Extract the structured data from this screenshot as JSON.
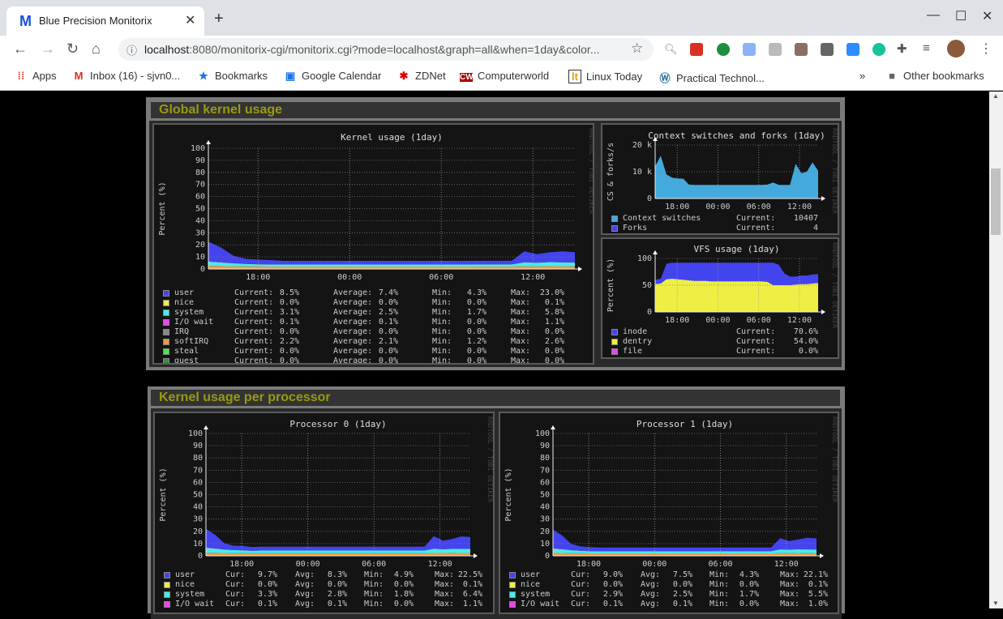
{
  "browser": {
    "tab_title": "Blue Precision Monitorix",
    "tab_favicon": "M",
    "url_host": "localhost",
    "url_rest": ":8080/monitorix-cgi/monitorix.cgi?mode=localhost&graph=all&when=1day&color...",
    "bookmarks": [
      {
        "icon": "apps-grid-icon",
        "label": "Apps"
      },
      {
        "icon": "gmail-icon",
        "label": "Inbox (16) - sjvn0..."
      },
      {
        "icon": "star-icon",
        "label": "Bookmarks"
      },
      {
        "icon": "calendar-icon",
        "label": "Google Calendar"
      },
      {
        "icon": "zdnet-icon",
        "label": "ZDNet"
      },
      {
        "icon": "computerworld-icon",
        "label": "Computerworld"
      },
      {
        "icon": "linux-today-icon",
        "label": "Linux Today"
      },
      {
        "icon": "wordpress-icon",
        "label": "Practical Technol..."
      }
    ],
    "overflow": "»",
    "other_bookmarks": "Other bookmarks"
  },
  "sections": [
    {
      "title": "Global kernel usage"
    },
    {
      "title": "Kernel usage per processor"
    }
  ],
  "watermark": "RRDTOOL / TOBI OETIKER",
  "colors": {
    "user": "#4444ee",
    "nice": "#eeee44",
    "system": "#44eeee",
    "iowait": "#ee44ee",
    "irq": "#888888",
    "softirq": "#ee9944",
    "steal": "#44ee44",
    "guest": "#448844",
    "cs": "#44aadd",
    "forks": "#4444ee",
    "inode": "#4444ee",
    "dentry": "#eeee44",
    "file": "#ee44ee",
    "section_title": "#9a9a10"
  },
  "chart_data": [
    {
      "type": "area",
      "title": "Kernel usage  (1day)",
      "ylabel": "Percent (%)",
      "ylim": [
        0,
        100
      ],
      "yticks": [
        "0",
        "10",
        "20",
        "30",
        "40",
        "50",
        "60",
        "70",
        "80",
        "90",
        "100"
      ],
      "xticks": [
        "18:00",
        "00:00",
        "06:00",
        "12:00"
      ],
      "grid": true,
      "series": [
        {
          "name": "softIRQ",
          "values": [
            2.6,
            2.4,
            2.2,
            2.2,
            2.1,
            2,
            2,
            2,
            2,
            2,
            2,
            2,
            2,
            2,
            2,
            2,
            2,
            2,
            2,
            2,
            2,
            2,
            2,
            2,
            2,
            2.3,
            2.2,
            2.4,
            2.3,
            2.2
          ]
        },
        {
          "name": "system",
          "values": [
            3.5,
            3,
            2.5,
            2,
            1.8,
            1.7,
            1.7,
            1.7,
            1.7,
            1.7,
            1.7,
            1.7,
            1.7,
            1.7,
            1.7,
            1.7,
            1.7,
            1.7,
            1.7,
            1.7,
            1.7,
            1.8,
            1.8,
            1.8,
            1.8,
            3.2,
            3,
            3.3,
            3.2,
            3.1
          ]
        },
        {
          "name": "I/O wait",
          "values": [
            0.5,
            0.3,
            0.2,
            0.1,
            0.1,
            0.1,
            0,
            0,
            0,
            0,
            0,
            0,
            0,
            0,
            0,
            0,
            0,
            0,
            0,
            0,
            0,
            0,
            0,
            0,
            0,
            0.2,
            0.1,
            0.1,
            0.1,
            0.1
          ]
        },
        {
          "name": "user",
          "values": [
            16,
            12,
            6,
            4,
            3.8,
            3.5,
            3,
            3,
            3,
            3,
            3,
            3,
            3,
            3,
            3,
            3,
            3,
            3,
            3,
            3,
            3,
            3,
            3,
            3,
            3,
            9,
            7,
            8,
            9,
            8.5
          ]
        }
      ],
      "legend": [
        {
          "key": "user",
          "cur": "8.5%",
          "avg": "7.4%",
          "min": "4.3%",
          "max": "23.0%"
        },
        {
          "key": "nice",
          "cur": "0.0%",
          "avg": "0.0%",
          "min": "0.0%",
          "max": "0.1%"
        },
        {
          "key": "system",
          "cur": "3.1%",
          "avg": "2.5%",
          "min": "1.7%",
          "max": "5.8%"
        },
        {
          "key": "I/O wait",
          "cur": "0.1%",
          "avg": "0.1%",
          "min": "0.0%",
          "max": "1.1%"
        },
        {
          "key": "IRQ",
          "cur": "0.0%",
          "avg": "0.0%",
          "min": "0.0%",
          "max": "0.0%"
        },
        {
          "key": "softIRQ",
          "cur": "2.2%",
          "avg": "2.1%",
          "min": "1.2%",
          "max": "2.6%"
        },
        {
          "key": "steal",
          "cur": "0.0%",
          "avg": "0.0%",
          "min": "0.0%",
          "max": "0.0%"
        },
        {
          "key": "guest",
          "cur": "0.0%",
          "avg": "0.0%",
          "min": "0.0%",
          "max": "0.0%"
        }
      ],
      "labels": {
        "cur": "Current:",
        "avg": "Average:",
        "min": "Min:",
        "max": "Max:"
      }
    },
    {
      "type": "area",
      "title": "Context switches and forks  (1day)",
      "ylabel": "CS & forks/s",
      "ylim": [
        0,
        20000
      ],
      "yticks": [
        "0",
        "10 k",
        "20 k"
      ],
      "xticks": [
        "18:00",
        "00:00",
        "06:00",
        "12:00"
      ],
      "grid": true,
      "series": [
        {
          "name": "Context switches",
          "values": [
            12000,
            16000,
            9000,
            7800,
            7500,
            7400,
            5200,
            5100,
            5100,
            5100,
            5100,
            5100,
            5100,
            5100,
            5100,
            5100,
            5100,
            5100,
            5100,
            5100,
            5200,
            6000,
            5100,
            5100,
            5100,
            13000,
            9500,
            10000,
            13500,
            10400
          ]
        },
        {
          "name": "Forks",
          "values": [
            5,
            6,
            4,
            4,
            4,
            4,
            4,
            4,
            4,
            4,
            4,
            4,
            4,
            4,
            4,
            4,
            4,
            4,
            4,
            4,
            4,
            4,
            4,
            4,
            4,
            5,
            4,
            4,
            5,
            4
          ]
        }
      ],
      "legend": [
        {
          "key": "Context switches",
          "cur": "10407"
        },
        {
          "key": "Forks",
          "cur": "4"
        }
      ],
      "labels": {
        "cur": "Current:"
      }
    },
    {
      "type": "area",
      "title": "VFS usage  (1day)",
      "ylabel": "Percent (%)",
      "ylim": [
        0,
        100
      ],
      "yticks": [
        "0",
        "50",
        "100"
      ],
      "xticks": [
        "18:00",
        "00:00",
        "06:00",
        "12:00"
      ],
      "grid": true,
      "series": [
        {
          "name": "inode",
          "values": [
            60,
            62,
            90,
            92,
            92,
            92,
            92,
            92,
            92,
            92,
            92,
            92,
            92,
            92,
            92,
            92,
            92,
            92,
            92,
            92,
            92,
            92,
            88,
            72,
            66,
            66,
            68,
            68,
            70,
            70.6
          ]
        },
        {
          "name": "dentry",
          "values": [
            52,
            53,
            61,
            62,
            61,
            60,
            59,
            58,
            58,
            58,
            57,
            57,
            57,
            57,
            57,
            57,
            57,
            57,
            57,
            57,
            56,
            50,
            50,
            50,
            50,
            51,
            52,
            52,
            53,
            54
          ]
        },
        {
          "name": "file",
          "values": [
            0,
            0,
            0,
            0,
            0,
            0,
            0,
            0,
            0,
            0,
            0,
            0,
            0,
            0,
            0,
            0,
            0,
            0,
            0,
            0,
            0,
            0,
            0,
            0,
            0,
            0,
            0,
            0,
            0,
            0
          ]
        }
      ],
      "legend": [
        {
          "key": "inode",
          "cur": "70.6%"
        },
        {
          "key": "dentry",
          "cur": "54.0%"
        },
        {
          "key": "file",
          "cur": "0.0%"
        }
      ],
      "labels": {
        "cur": "Current:"
      }
    },
    {
      "type": "area",
      "title": "Processor 0  (1day)",
      "ylabel": "Percent (%)",
      "ylim": [
        0,
        100
      ],
      "yticks": [
        "0",
        "10",
        "20",
        "30",
        "40",
        "50",
        "60",
        "70",
        "80",
        "90",
        "100"
      ],
      "xticks": [
        "18:00",
        "00:00",
        "06:00",
        "12:00"
      ],
      "grid": true,
      "series": [
        {
          "name": "softIRQ",
          "values": [
            2.5,
            2.4,
            2.3,
            2.2,
            2.2,
            2.1,
            2.1,
            2.1,
            2.1,
            2.1,
            2.1,
            2.1,
            2.1,
            2.1,
            2.1,
            2.1,
            2.1,
            2.1,
            2.1,
            2.1,
            2.1,
            2.1,
            2.1,
            2.1,
            2.2,
            2.3,
            2.3,
            2.4,
            2.3,
            2.3
          ]
        },
        {
          "name": "system",
          "values": [
            4,
            3.5,
            2.8,
            2.5,
            2.3,
            2,
            2.2,
            2.2,
            2.2,
            2.2,
            2.2,
            2.2,
            2.2,
            2.2,
            2.2,
            2.2,
            2.2,
            2.2,
            2.2,
            2.2,
            2.2,
            2.2,
            2.2,
            2.2,
            2.2,
            3.5,
            3,
            3.3,
            3.4,
            3.3
          ]
        },
        {
          "name": "I/O wait",
          "values": [
            0.5,
            0.3,
            0.2,
            0.1,
            0.1,
            0.1,
            0,
            0,
            0,
            0,
            0,
            0,
            0,
            0,
            0,
            0,
            0,
            0,
            0,
            0,
            0,
            0,
            0,
            0,
            0,
            0.2,
            0.1,
            0.1,
            0.1,
            0.1
          ]
        },
        {
          "name": "user",
          "values": [
            15,
            11,
            5,
            3.5,
            3.5,
            3,
            3.2,
            3.2,
            3.2,
            3.2,
            3.2,
            3.2,
            3.2,
            3.2,
            3.2,
            3.2,
            3.2,
            3.2,
            3.2,
            3.2,
            3.2,
            3.2,
            3.2,
            3.2,
            3.2,
            10,
            7,
            8,
            10,
            9.7
          ]
        }
      ],
      "legend": [
        {
          "key": "user",
          "cur": "9.7%",
          "avg": "8.3%",
          "min": "4.9%",
          "max": "22.5%"
        },
        {
          "key": "nice",
          "cur": "0.0%",
          "avg": "0.0%",
          "min": "0.0%",
          "max": "0.1%"
        },
        {
          "key": "system",
          "cur": "3.3%",
          "avg": "2.8%",
          "min": "1.8%",
          "max": "6.4%"
        },
        {
          "key": "I/O wait",
          "cur": "0.1%",
          "avg": "0.1%",
          "min": "0.0%",
          "max": "1.1%"
        }
      ],
      "labels": {
        "cur": "Cur:",
        "avg": "Avg:",
        "min": "Min:",
        "max": "Max:"
      }
    },
    {
      "type": "area",
      "title": "Processor 1  (1day)",
      "ylabel": "Percent (%)",
      "ylim": [
        0,
        100
      ],
      "yticks": [
        "0",
        "10",
        "20",
        "30",
        "40",
        "50",
        "60",
        "70",
        "80",
        "90",
        "100"
      ],
      "xticks": [
        "18:00",
        "00:00",
        "06:00",
        "12:00"
      ],
      "grid": true,
      "series": [
        {
          "name": "softIRQ",
          "values": [
            2.4,
            2.3,
            2.2,
            2.1,
            2,
            2,
            2,
            2,
            2,
            2,
            2,
            2,
            2,
            2,
            2,
            2,
            2,
            2,
            2,
            2,
            2,
            2,
            2,
            2,
            2,
            2.2,
            2.2,
            2.3,
            2.2,
            2.2
          ]
        },
        {
          "name": "system",
          "values": [
            3.5,
            3,
            2.4,
            2,
            1.8,
            1.7,
            1.8,
            1.8,
            1.8,
            1.8,
            1.8,
            1.8,
            1.8,
            1.8,
            1.8,
            1.8,
            1.8,
            1.8,
            1.8,
            1.8,
            1.8,
            1.8,
            1.8,
            1.8,
            1.8,
            3,
            2.8,
            3,
            3,
            2.9
          ]
        },
        {
          "name": "I/O wait",
          "values": [
            0.4,
            0.3,
            0.2,
            0.1,
            0.1,
            0.1,
            0,
            0,
            0,
            0,
            0,
            0,
            0,
            0,
            0,
            0,
            0,
            0,
            0,
            0,
            0,
            0,
            0,
            0,
            0,
            0.2,
            0.1,
            0.1,
            0.1,
            0.1
          ]
        },
        {
          "name": "user",
          "values": [
            15,
            11,
            5,
            3.5,
            3.3,
            3,
            3,
            3,
            3,
            3,
            3,
            3,
            3,
            3,
            3,
            3,
            3,
            3,
            3,
            3,
            3,
            3,
            3,
            3,
            3,
            9,
            7,
            8,
            9.5,
            9
          ]
        }
      ],
      "legend": [
        {
          "key": "user",
          "cur": "9.0%",
          "avg": "7.5%",
          "min": "4.3%",
          "max": "22.1%"
        },
        {
          "key": "nice",
          "cur": "0.0%",
          "avg": "0.0%",
          "min": "0.0%",
          "max": "0.1%"
        },
        {
          "key": "system",
          "cur": "2.9%",
          "avg": "2.5%",
          "min": "1.7%",
          "max": "5.5%"
        },
        {
          "key": "I/O wait",
          "cur": "0.1%",
          "avg": "0.1%",
          "min": "0.0%",
          "max": "1.0%"
        }
      ],
      "labels": {
        "cur": "Cur:",
        "avg": "Avg:",
        "min": "Min:",
        "max": "Max:"
      }
    }
  ]
}
